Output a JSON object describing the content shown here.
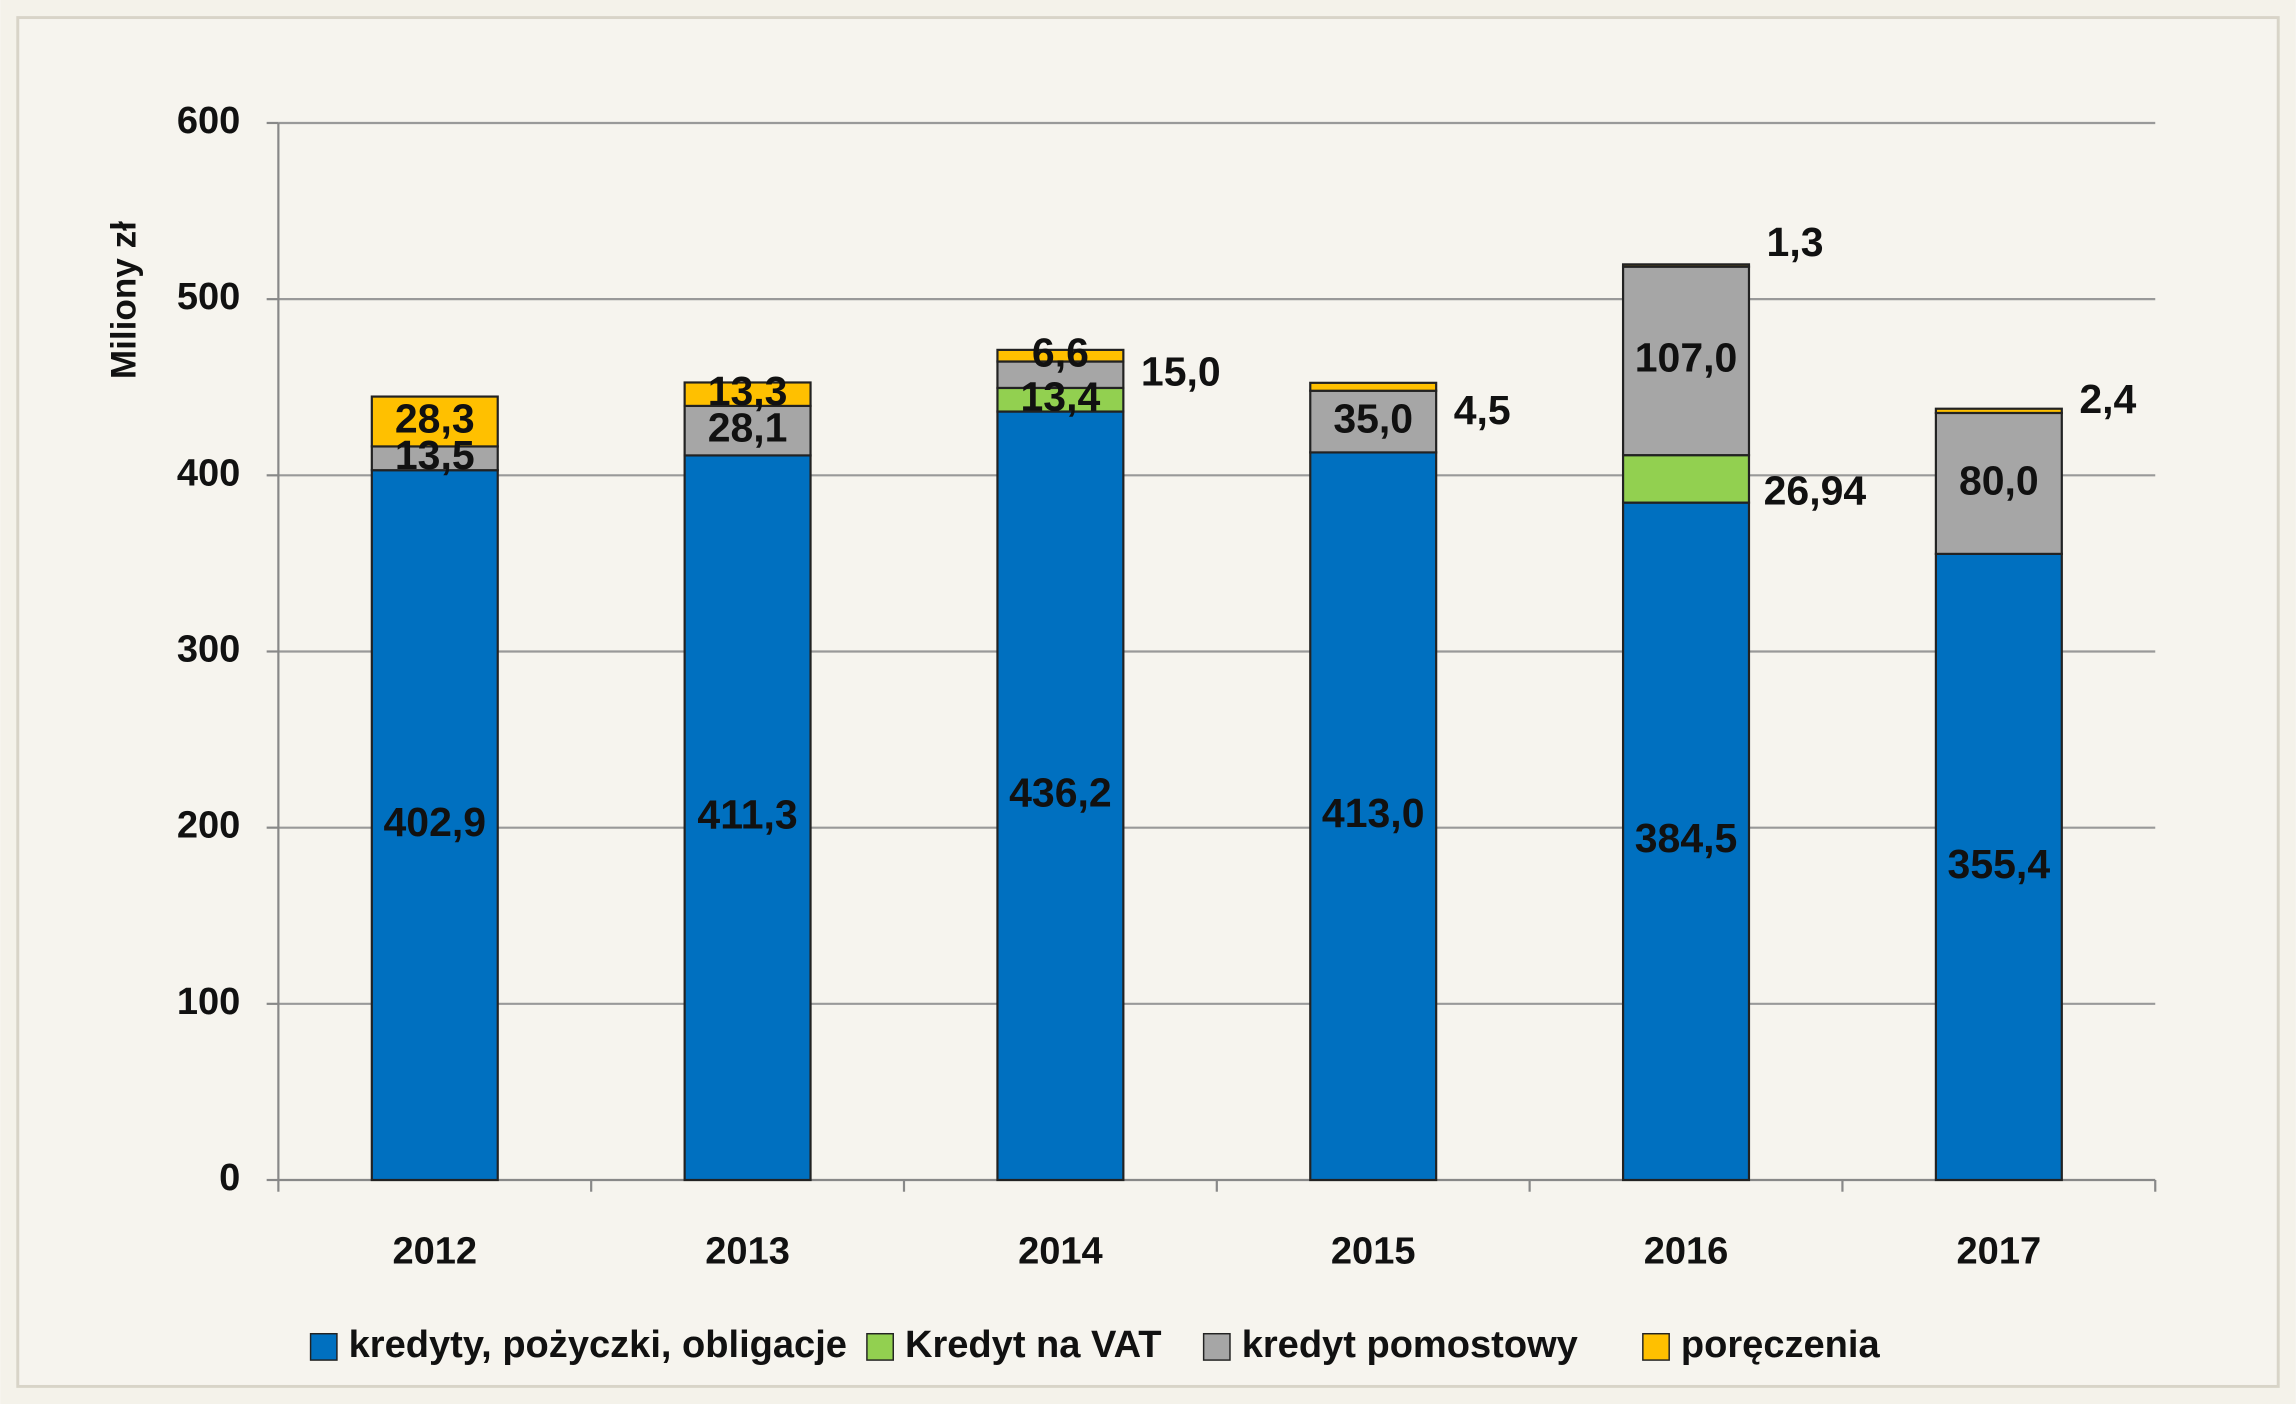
{
  "chart_data": {
    "type": "bar",
    "stacked": true,
    "ylabel": "Miliony zł",
    "categories": [
      "2012",
      "2013",
      "2014",
      "2015",
      "2016",
      "2017"
    ],
    "series": [
      {
        "name": "kredyty, pożyczki, obligacje",
        "color": "#0070c0",
        "values": [
          402.9,
          411.3,
          436.2,
          413.0,
          384.5,
          355.4
        ],
        "value_labels": [
          "402,9",
          "411,3",
          "436,2",
          "413,0",
          "384,5",
          "355,4"
        ]
      },
      {
        "name": "Kredyt na VAT",
        "color": "#92d050",
        "values": [
          null,
          null,
          13.4,
          null,
          26.94,
          null
        ],
        "value_labels": [
          null,
          null,
          "13,4",
          null,
          "26,94",
          null
        ]
      },
      {
        "name": "kredyt pomostowy",
        "color": "#a6a6a6",
        "values": [
          13.5,
          28.1,
          15.0,
          35.0,
          107.0,
          80.0
        ],
        "value_labels": [
          "13,5",
          "28,1",
          "15,0",
          "35,0",
          "107,0",
          "80,0"
        ]
      },
      {
        "name": "poręczenia",
        "color": "#ffc000",
        "values": [
          28.3,
          13.3,
          6.6,
          4.5,
          1.3,
          2.4
        ],
        "value_labels": [
          "28,3",
          "13,3",
          "6,6",
          "4,5",
          "1,3",
          "2,4"
        ]
      }
    ],
    "ylim": [
      0,
      600
    ],
    "yticks": [
      0,
      100,
      200,
      300,
      400,
      500,
      600
    ],
    "grid": true,
    "legend": "bottom"
  }
}
